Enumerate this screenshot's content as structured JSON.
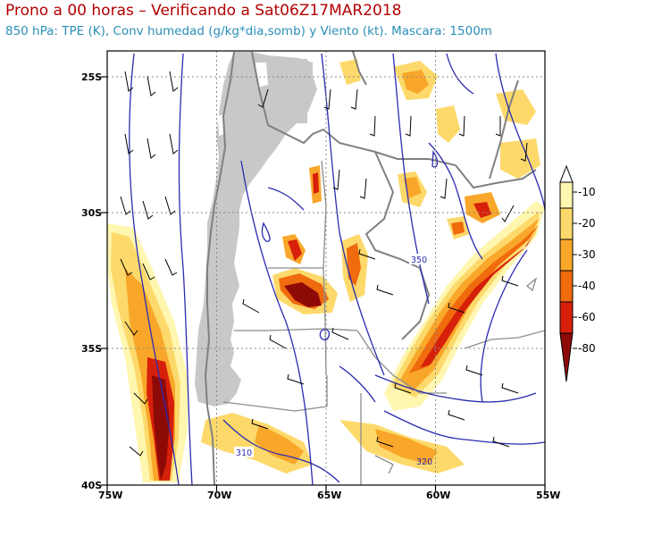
{
  "title": "Prono a 00 horas – Verificando a Sat06Z17MAR2018",
  "subtitle": "850 hPa: TPE (K), Conv humedad (g/kg*dia,somb) y Viento (kt). Mascara: 1500m",
  "map": {
    "lon_labels": [
      "75W",
      "70W",
      "65W",
      "60W",
      "55W"
    ],
    "lat_labels": [
      "25S",
      "30S",
      "35S",
      "40S"
    ],
    "contour_labels": [
      "350",
      "310",
      "320"
    ],
    "lon_range": [
      -75,
      -55
    ],
    "lat_range": [
      -40,
      -24.5
    ],
    "gridlines": "dotted"
  },
  "colorbar": {
    "labels": [
      "-10",
      "-20",
      "-30",
      "-40",
      "-60",
      "-80"
    ],
    "colors": [
      "#fff6b0",
      "#fcd96a",
      "#f9a72a",
      "#f06a0e",
      "#d6200a",
      "#8e0a06"
    ]
  },
  "colors": {
    "mask": "#c8c8c8",
    "contour": "#2b2bb0",
    "border": "#808080"
  }
}
